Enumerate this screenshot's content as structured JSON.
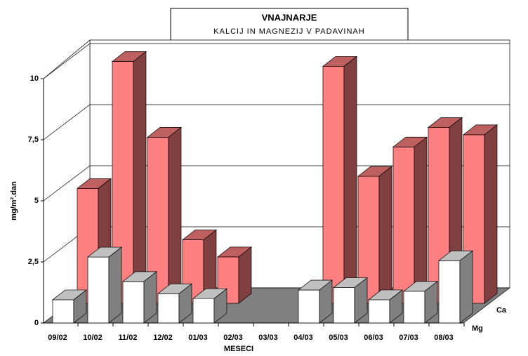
{
  "chart_data": {
    "type": "bar3d",
    "title": "VNAJNARJE",
    "subtitle": "KALCIJ IN MAGNEZIJ V PADAVINAH",
    "x_label": "MESECI",
    "y_label": "mg/m².dan",
    "categories": [
      "09/02",
      "10/02",
      "11/02",
      "12/02",
      "01/03",
      "02/03",
      "03/03",
      "04/03",
      "05/03",
      "06/03",
      "07/03",
      "08/03"
    ],
    "series": [
      {
        "name": "Ca",
        "color": "#ff8080",
        "values": [
          4.7,
          9.9,
          6.8,
          2.6,
          1.9,
          null,
          null,
          9.7,
          5.2,
          6.4,
          7.2,
          6.9
        ]
      },
      {
        "name": "Mg",
        "color": "#ffffff",
        "values": [
          0.95,
          2.7,
          1.7,
          1.2,
          1.0,
          null,
          null,
          1.35,
          1.45,
          0.95,
          1.3,
          2.55
        ]
      }
    ],
    "ylim": [
      0,
      10
    ],
    "yticks": [
      0,
      {
        "value": 2.5,
        "label": "2,5"
      },
      5,
      {
        "value": 7.5,
        "label": "7,5"
      },
      10
    ],
    "grid": true
  }
}
